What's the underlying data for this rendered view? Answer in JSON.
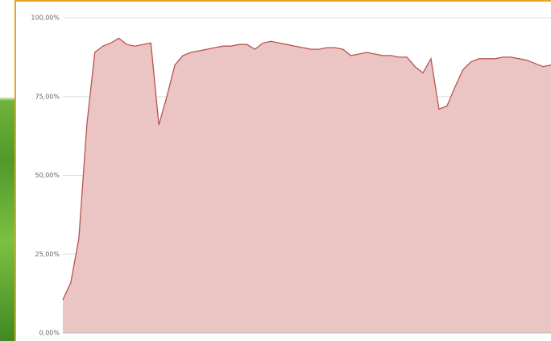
{
  "chart_data": {
    "type": "area",
    "values": [
      10.5,
      16,
      30,
      66,
      89,
      91,
      92,
      93.5,
      91.5,
      91,
      91.5,
      92,
      66,
      75,
      85,
      88,
      89,
      89.5,
      90,
      90.5,
      91,
      91,
      91.5,
      91.5,
      90,
      92,
      92.5,
      92,
      91.5,
      91,
      90.5,
      90,
      90,
      90.5,
      90.5,
      90,
      88,
      88.5,
      89,
      88.5,
      88,
      88,
      87.5,
      87.5,
      84.5,
      82.5,
      87,
      71,
      72,
      78,
      83.5,
      86,
      87,
      87,
      87,
      87.5,
      87.5,
      87,
      86.5,
      85.5,
      84.5,
      85
    ],
    "color": "#b85450",
    "fill": "#ebc4c4",
    "ylim": [
      0,
      100
    ],
    "yticks": [
      {
        "value": 0,
        "label": "0,00%"
      },
      {
        "value": 25,
        "label": "25,00%"
      },
      {
        "value": 50,
        "label": "50,00%"
      },
      {
        "value": 75,
        "label": "75,00%"
      },
      {
        "value": 100,
        "label": "100,00%"
      }
    ],
    "grid": true
  }
}
